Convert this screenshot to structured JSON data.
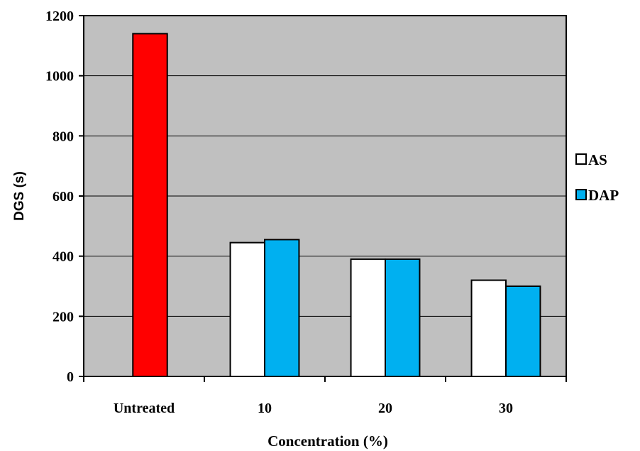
{
  "chart_data": {
    "type": "bar",
    "title": "",
    "xlabel": "Concentration (%)",
    "ylabel": "DGS (s)",
    "ylim": [
      0,
      1200
    ],
    "yticks": [
      "0",
      "200",
      "400",
      "600",
      "800",
      "1000",
      "1200"
    ],
    "grid": true,
    "legend_position": "right",
    "categories": [
      "Untreated",
      "10",
      "20",
      "30"
    ],
    "untreated": {
      "value": 1140,
      "color": "#ff0000"
    },
    "series": [
      {
        "name": "AS",
        "color": "#ffffff",
        "values": [
          null,
          445,
          390,
          320
        ]
      },
      {
        "name": "DAP",
        "color": "#00b0f0",
        "values": [
          null,
          455,
          390,
          300
        ]
      }
    ],
    "plot_background": "#c0c0c0"
  }
}
